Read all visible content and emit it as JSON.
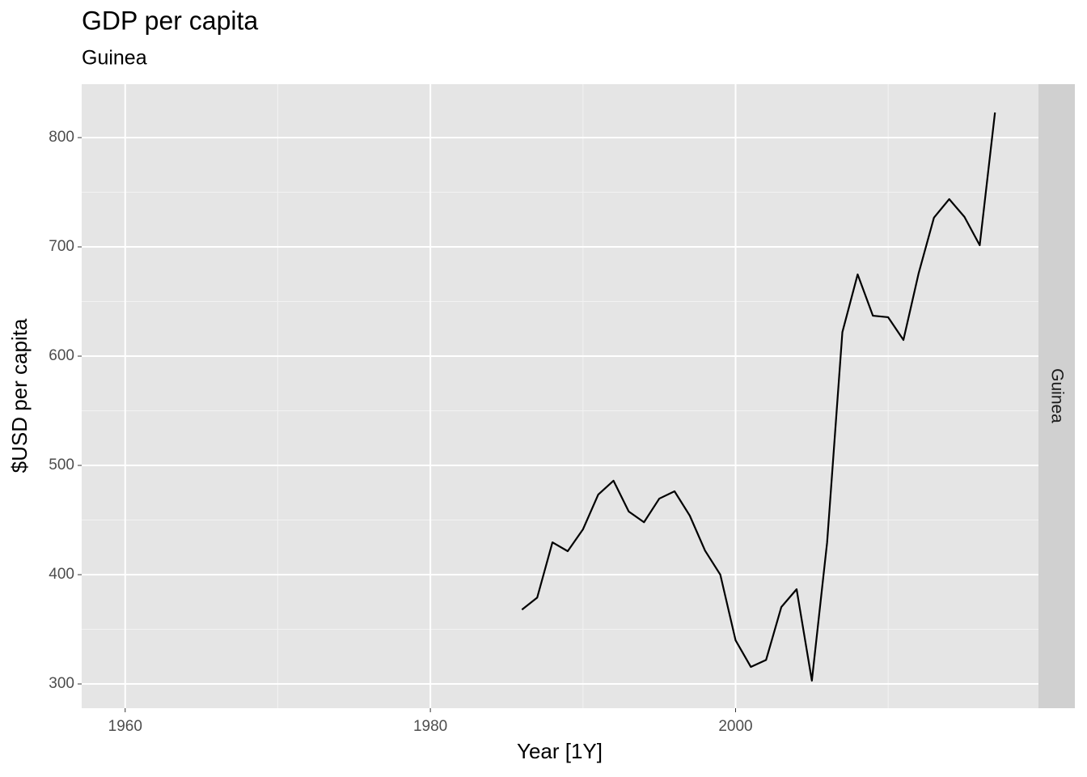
{
  "chart_data": {
    "type": "line",
    "title": "GDP per capita",
    "subtitle": "Guinea",
    "facet_label": "Guinea",
    "x_label": "Year [1Y]",
    "y_label": "$USD per capita",
    "x": [
      1960,
      1961,
      1962,
      1963,
      1964,
      1965,
      1966,
      1967,
      1968,
      1969,
      1970,
      1971,
      1972,
      1973,
      1974,
      1975,
      1976,
      1977,
      1978,
      1979,
      1980,
      1981,
      1982,
      1983,
      1984,
      1985,
      1986,
      1987,
      1988,
      1989,
      1990,
      1991,
      1992,
      1993,
      1994,
      1995,
      1996,
      1997,
      1998,
      1999,
      2000,
      2001,
      2002,
      2003,
      2004,
      2005,
      2006,
      2007,
      2008,
      2009,
      2010,
      2011,
      2012,
      2013,
      2014,
      2015,
      2016,
      2017
    ],
    "series": [
      {
        "name": "Guinea",
        "color": "#000000",
        "values": [
          null,
          null,
          null,
          null,
          null,
          null,
          null,
          null,
          null,
          null,
          null,
          null,
          null,
          null,
          null,
          null,
          null,
          null,
          null,
          null,
          null,
          null,
          null,
          null,
          null,
          null,
          368,
          379,
          429.6,
          421.5,
          441.5,
          473.3,
          486,
          457.8,
          448,
          469.6,
          476.3,
          454,
          422,
          400,
          340,
          315.6,
          322,
          370.4,
          386.7,
          303,
          429.6,
          622,
          674.8,
          637,
          635.6,
          614.8,
          676,
          726.7,
          743.7,
          727.4,
          701.5,
          823
        ]
      }
    ],
    "xlim": [
      1957.15,
      2019.85
    ],
    "xticks": [
      1960,
      1980,
      2000
    ],
    "ylim": [
      277.8,
      848.9
    ],
    "yticks": [
      300,
      400,
      500,
      600,
      700,
      800
    ],
    "grid": true
  }
}
